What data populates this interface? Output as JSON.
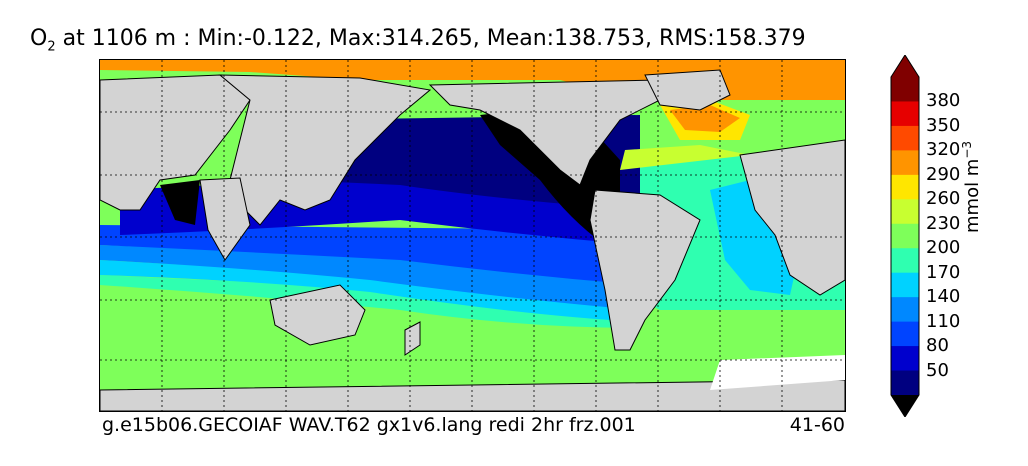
{
  "title": {
    "var": "O",
    "sub": "2",
    "rest": " at 1106 m : Min:-0.122, Max:314.265, Mean:138.753, RMS:158.379"
  },
  "footer": {
    "case_name": "g.e15b06.GECOIAF WAV.T62 gx1v6.lang redi 2hr frz.001",
    "years": "41-60"
  },
  "colorbar": {
    "units_prefix": "mmol m",
    "units_exp": "−3",
    "levels": [
      "50",
      "80",
      "110",
      "140",
      "170",
      "200",
      "230",
      "260",
      "290",
      "320",
      "350",
      "380"
    ],
    "colors": [
      "#000080",
      "#0000cd",
      "#0044ff",
      "#0088ff",
      "#00d2ff",
      "#2fffb0",
      "#7eff5a",
      "#c8ff30",
      "#ffe600",
      "#ff9400",
      "#ff4a00",
      "#e60000",
      "#800000"
    ]
  },
  "colors": {
    "land": "#d3d3d3",
    "ice_mask": "#ffffff",
    "anoxic": "#000000"
  }
}
